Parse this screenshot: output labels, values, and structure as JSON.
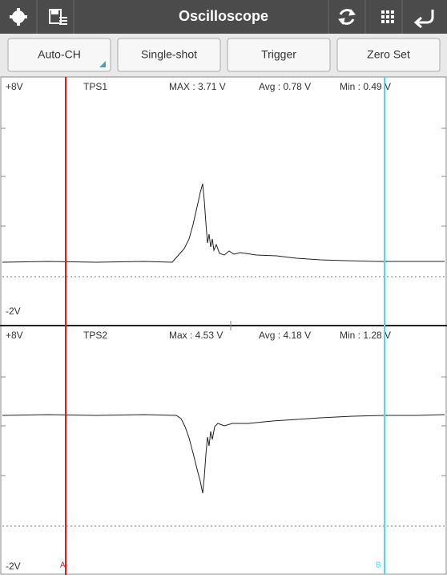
{
  "toolbar": {
    "title": "Oscilloscope"
  },
  "buttons": [
    "Auto-CH",
    "Single-shot",
    "Trigger",
    "Zero Set"
  ],
  "channels": [
    {
      "top_label": "+8V",
      "name": "TPS1",
      "max": "MAX : 3.71 V",
      "avg": "Avg : 0.78 V",
      "min": "Min : 0.49 V",
      "bottom_label": "-2V"
    },
    {
      "top_label": "+8V",
      "name": "TPS2",
      "max": "Max : 4.53 V",
      "avg": "Avg : 4.18 V",
      "min": "Min : 1.28 V",
      "bottom_label": "-2V"
    }
  ],
  "cursors": [
    "A",
    "B"
  ]
}
